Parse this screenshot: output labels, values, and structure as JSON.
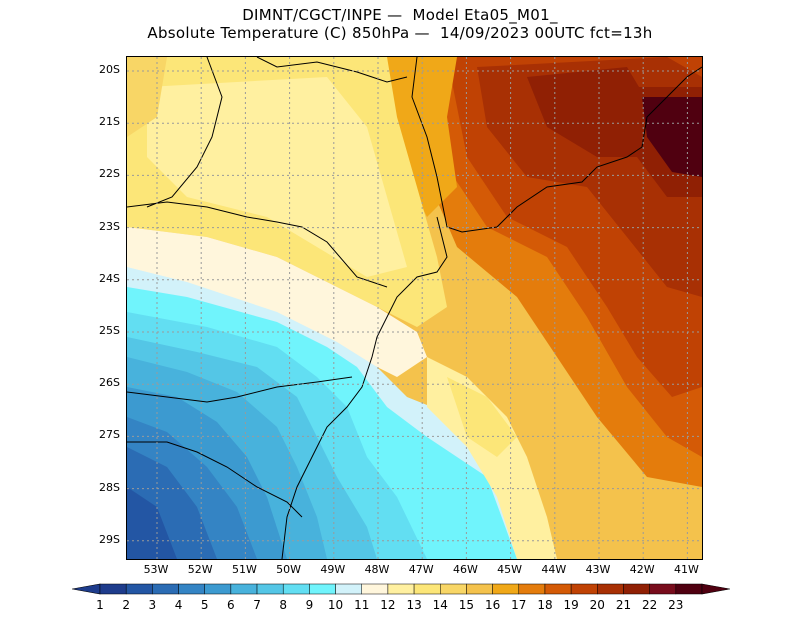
{
  "header": {
    "title_line1": "DIMNT/CGCT/INPE —  Model Eta05_M01_",
    "title_line2": "Absolute Temperature (C) 850hPa —  14/09/2023 00UTC fct=13h"
  },
  "map": {
    "lat_labels": [
      "20S",
      "21S",
      "22S",
      "23S",
      "24S",
      "25S",
      "26S",
      "27S",
      "28S",
      "29S"
    ],
    "lon_labels": [
      "53W",
      "52W",
      "51W",
      "50W",
      "49W",
      "48W",
      "47W",
      "46W",
      "45W",
      "44W",
      "43W",
      "42W",
      "41W"
    ],
    "gridlines": "dotted",
    "region_description_colors": {
      "coast_line": "#000000",
      "grid_line": "#9a9a9a"
    }
  },
  "colorbar": {
    "labels": [
      "1",
      "2",
      "3",
      "4",
      "5",
      "6",
      "7",
      "8",
      "9",
      "10",
      "11",
      "12",
      "13",
      "14",
      "15",
      "16",
      "17",
      "18",
      "19",
      "20",
      "21",
      "22",
      "23"
    ],
    "colors": [
      "#1e3c8c",
      "#2356a4",
      "#2b6cb4",
      "#3484c4",
      "#3c9ad0",
      "#48b2dc",
      "#54c6e6",
      "#62def2",
      "#70f4fc",
      "#d2f2fa",
      "#fff6dc",
      "#fff0a0",
      "#fce678",
      "#f8d666",
      "#f4c24c",
      "#f0a818",
      "#e47c0c",
      "#d45a06",
      "#c04204",
      "#a83004",
      "#902004",
      "#780c1c",
      "#500010"
    ],
    "under_color": "#1e3c8c",
    "over_color": "#500010"
  }
}
